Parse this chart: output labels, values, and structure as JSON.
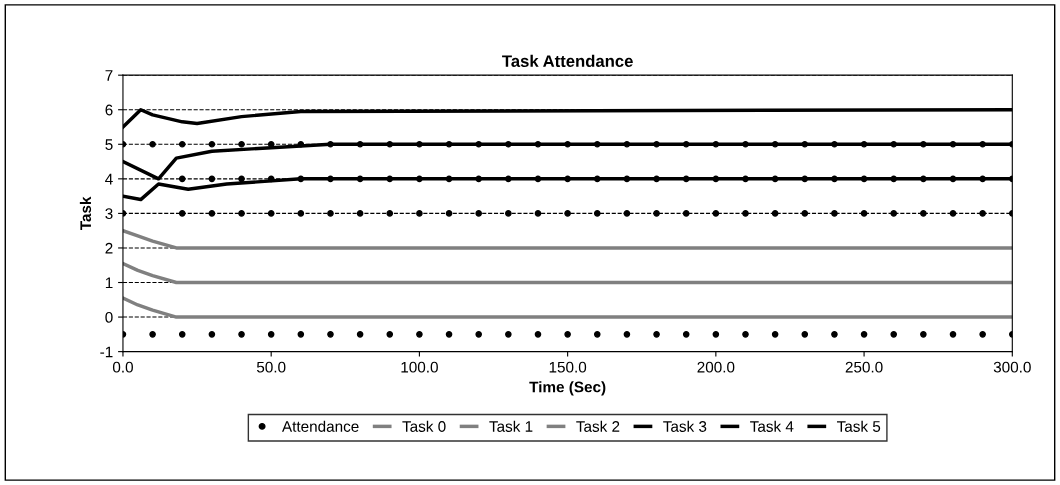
{
  "chart_data": {
    "type": "line",
    "title": "Task Attendance",
    "xlabel": "Time (Sec)",
    "ylabel": "Task",
    "xlim": [
      0,
      300
    ],
    "xticks": [
      {
        "value": 0,
        "label": "0.0"
      },
      {
        "value": 50,
        "label": "50.0"
      },
      {
        "value": 100,
        "label": "100.0"
      },
      {
        "value": 150,
        "label": "150.0"
      },
      {
        "value": 200,
        "label": "200.0"
      },
      {
        "value": 250,
        "label": "250.0"
      },
      {
        "value": 300,
        "label": "300.0"
      }
    ],
    "ylim": [
      -1,
      7
    ],
    "yticks": [
      -1,
      0,
      1,
      2,
      3,
      4,
      5,
      6,
      7
    ],
    "grid": "y",
    "legend": "bottom",
    "line_style": "solid",
    "series": [
      {
        "name": "Attendance",
        "type": "scatter",
        "marker": "circle",
        "color": "#000000",
        "x": [
          0,
          10,
          20,
          30,
          40,
          50,
          60,
          70,
          80,
          90,
          100,
          110,
          120,
          130,
          140,
          150,
          160,
          170,
          180,
          190,
          200,
          210,
          220,
          230,
          240,
          250,
          260,
          270,
          280,
          290,
          300,
          0,
          20,
          30,
          40,
          50,
          60,
          70,
          80,
          90,
          100,
          110,
          120,
          130,
          140,
          150,
          160,
          170,
          180,
          190,
          200,
          210,
          220,
          230,
          240,
          250,
          260,
          270,
          280,
          290,
          300,
          20,
          30,
          40,
          50,
          60,
          70,
          80,
          90,
          100,
          110,
          120,
          130,
          140,
          150,
          160,
          170,
          180,
          190,
          200,
          210,
          220,
          230,
          240,
          250,
          260,
          270,
          280,
          290,
          300,
          0,
          10,
          20,
          30,
          40,
          50,
          60,
          70,
          80,
          90,
          100,
          110,
          120,
          130,
          140,
          150,
          160,
          170,
          180,
          190,
          200,
          210,
          220,
          230,
          240,
          250,
          260,
          270,
          280,
          290,
          300
        ],
        "values": [
          -0.5,
          -0.5,
          -0.5,
          -0.5,
          -0.5,
          -0.5,
          -0.5,
          -0.5,
          -0.5,
          -0.5,
          -0.5,
          -0.5,
          -0.5,
          -0.5,
          -0.5,
          -0.5,
          -0.5,
          -0.5,
          -0.5,
          -0.5,
          -0.5,
          -0.5,
          -0.5,
          -0.5,
          -0.5,
          -0.5,
          -0.5,
          -0.5,
          -0.5,
          -0.5,
          -0.5,
          3,
          3,
          3,
          3,
          3,
          3,
          3,
          3,
          3,
          3,
          3,
          3,
          3,
          3,
          3,
          3,
          3,
          3,
          3,
          3,
          3,
          3,
          3,
          3,
          3,
          3,
          3,
          3,
          3,
          3,
          4,
          4,
          4,
          4,
          4,
          4,
          4,
          4,
          4,
          4,
          4,
          4,
          4,
          4,
          4,
          4,
          4,
          4,
          4,
          4,
          4,
          4,
          4,
          4,
          4,
          4,
          4,
          4,
          4,
          5,
          5,
          5,
          5,
          5,
          5,
          5,
          5,
          5,
          5,
          5,
          5,
          5,
          5,
          5,
          5,
          5,
          5,
          5,
          5,
          5,
          5,
          5,
          5,
          5,
          5,
          5,
          5,
          5,
          5,
          5
        ]
      },
      {
        "name": "Task 0",
        "color": "#808080",
        "x": [
          0,
          5,
          10,
          18,
          40,
          300
        ],
        "values": [
          0.55,
          0.35,
          0.2,
          0,
          0,
          0
        ]
      },
      {
        "name": "Task 1",
        "color": "#808080",
        "x": [
          0,
          5,
          10,
          18,
          40,
          300
        ],
        "values": [
          1.55,
          1.35,
          1.2,
          1,
          1,
          1
        ]
      },
      {
        "name": "Task 2",
        "color": "#808080",
        "x": [
          0,
          5,
          10,
          18,
          40,
          300
        ],
        "values": [
          2.5,
          2.35,
          2.2,
          2,
          2,
          2
        ]
      },
      {
        "name": "Task 3",
        "color": "#000000",
        "x": [
          0,
          6,
          12,
          22,
          35,
          60,
          300
        ],
        "values": [
          3.5,
          3.4,
          3.85,
          3.7,
          3.85,
          4,
          4
        ]
      },
      {
        "name": "Task 4",
        "color": "#000000",
        "x": [
          0,
          12,
          18,
          30,
          50,
          70,
          300
        ],
        "values": [
          4.5,
          4.0,
          4.6,
          4.8,
          4.9,
          5,
          5
        ]
      },
      {
        "name": "Task 5",
        "color": "#000000",
        "x": [
          0,
          6,
          10,
          20,
          25,
          40,
          60,
          300
        ],
        "values": [
          5.5,
          6,
          5.85,
          5.65,
          5.6,
          5.8,
          5.95,
          6
        ]
      }
    ]
  }
}
